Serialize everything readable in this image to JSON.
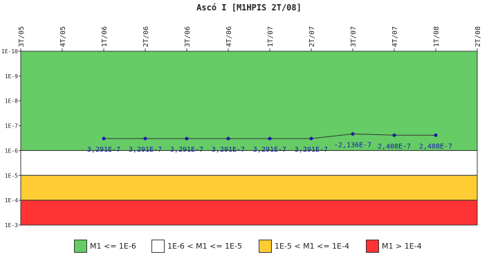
{
  "chart_data": {
    "type": "line",
    "title": "Ascó I [M1HPIS 2T/08]",
    "categories": [
      "3T/05",
      "4T/05",
      "1T/06",
      "2T/06",
      "3T/06",
      "4T/06",
      "1T/07",
      "2T/07",
      "3T/07",
      "4T/07",
      "1T/08",
      "2T/08"
    ],
    "yscale": "log",
    "y_tick_labels": [
      "1E-10",
      "1E-9",
      "1E-8",
      "1E-7",
      "1E-6",
      "1E-5",
      "1E-4",
      "1E-3"
    ],
    "series": [
      {
        "values": [
          null,
          null,
          3.291e-07,
          3.291e-07,
          3.291e-07,
          3.291e-07,
          3.291e-07,
          3.291e-07,
          -2.136e-07,
          2.408e-07,
          2.408e-07,
          null
        ],
        "labels": [
          "",
          "",
          "3,291E-7",
          "3,291E-7",
          "3,291E-7",
          "3,291E-7",
          "3,291E-7",
          "3,291E-7",
          "-2,136E-7",
          "2,408E-7",
          "2,408E-7",
          ""
        ],
        "color": "#1a1aa8"
      }
    ],
    "bands": [
      {
        "label": "M1 <= 1E-6",
        "color": "#66cc66"
      },
      {
        "label": "1E-6 < M1 <= 1E-5",
        "color": "#ffffff"
      },
      {
        "label": "1E-5 < M1 <= 1E-4",
        "color": "#ffcc33"
      },
      {
        "label": "M1 > 1E-4",
        "color": "#ff3333"
      }
    ],
    "legend_position": "bottom",
    "grid": false
  }
}
